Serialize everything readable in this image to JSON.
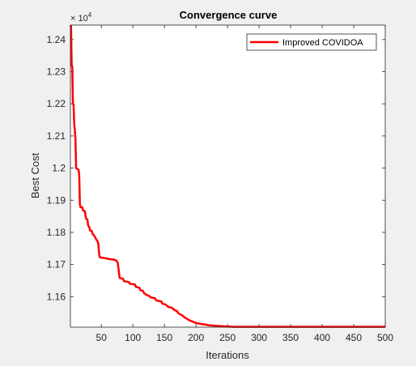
{
  "chart_data": {
    "type": "line",
    "title": "Convergence curve",
    "xlabel": "Iterations",
    "ylabel": "Best Cost",
    "y_exponent_label": "× 10",
    "y_exponent_power": "4",
    "y_scale_factor": 10000,
    "xlim": [
      1,
      500
    ],
    "ylim": [
      1.1505,
      1.2445
    ],
    "xticks": [
      50,
      100,
      150,
      200,
      250,
      300,
      350,
      400,
      450,
      500
    ],
    "yticks": [
      1.16,
      1.17,
      1.18,
      1.19,
      1.2,
      1.21,
      1.22,
      1.23,
      1.24
    ],
    "ytick_labels": [
      "1.16",
      "1.17",
      "1.18",
      "1.19",
      "1.2",
      "1.21",
      "1.22",
      "1.23",
      "1.24"
    ],
    "legend_position": "top-right",
    "grid": false,
    "series": [
      {
        "name": "Improved COVIDOA",
        "color": "#ff0000",
        "points": [
          [
            1,
            1.2445
          ],
          [
            2,
            1.244
          ],
          [
            3,
            1.232
          ],
          [
            4,
            1.2315
          ],
          [
            5,
            1.22
          ],
          [
            6,
            1.2198
          ],
          [
            7,
            1.214
          ],
          [
            8,
            1.2118
          ],
          [
            9,
            1.209
          ],
          [
            10,
            1.2
          ],
          [
            11,
            1.1998
          ],
          [
            14,
            1.1995
          ],
          [
            15,
            1.1975
          ],
          [
            16,
            1.1888
          ],
          [
            17,
            1.1878
          ],
          [
            20,
            1.1878
          ],
          [
            21,
            1.1868
          ],
          [
            24,
            1.1866
          ],
          [
            25,
            1.185
          ],
          [
            26,
            1.1842
          ],
          [
            28,
            1.184
          ],
          [
            29,
            1.1822
          ],
          [
            31,
            1.1816
          ],
          [
            32,
            1.1806
          ],
          [
            35,
            1.1804
          ],
          [
            36,
            1.1795
          ],
          [
            38,
            1.1792
          ],
          [
            40,
            1.1785
          ],
          [
            43,
            1.1775
          ],
          [
            45,
            1.1768
          ],
          [
            46,
            1.1745
          ],
          [
            47,
            1.1725
          ],
          [
            48,
            1.1722
          ],
          [
            55,
            1.172
          ],
          [
            60,
            1.1718
          ],
          [
            65,
            1.1716
          ],
          [
            70,
            1.1715
          ],
          [
            74,
            1.1712
          ],
          [
            76,
            1.1705
          ],
          [
            78,
            1.1675
          ],
          [
            79,
            1.1658
          ],
          [
            84,
            1.1656
          ],
          [
            86,
            1.1648
          ],
          [
            94,
            1.1645
          ],
          [
            95,
            1.164
          ],
          [
            103,
            1.1638
          ],
          [
            105,
            1.163
          ],
          [
            110,
            1.1628
          ],
          [
            112,
            1.162
          ],
          [
            116,
            1.1618
          ],
          [
            118,
            1.161
          ],
          [
            122,
            1.1605
          ],
          [
            126,
            1.1602
          ],
          [
            128,
            1.1598
          ],
          [
            135,
            1.1595
          ],
          [
            137,
            1.1588
          ],
          [
            145,
            1.1585
          ],
          [
            147,
            1.1578
          ],
          [
            152,
            1.1575
          ],
          [
            156,
            1.1568
          ],
          [
            162,
            1.1565
          ],
          [
            166,
            1.1558
          ],
          [
            170,
            1.1555
          ],
          [
            172,
            1.1548
          ],
          [
            178,
            1.1542
          ],
          [
            182,
            1.1535
          ],
          [
            185,
            1.1532
          ],
          [
            188,
            1.1528
          ],
          [
            190,
            1.1526
          ],
          [
            195,
            1.1522
          ],
          [
            200,
            1.1518
          ],
          [
            205,
            1.1516
          ],
          [
            210,
            1.1514
          ],
          [
            215,
            1.1513
          ],
          [
            220,
            1.1511
          ],
          [
            225,
            1.151
          ],
          [
            230,
            1.1509
          ],
          [
            240,
            1.1508
          ],
          [
            250,
            1.1507
          ],
          [
            260,
            1.1506
          ],
          [
            500,
            1.1506
          ]
        ]
      }
    ]
  }
}
